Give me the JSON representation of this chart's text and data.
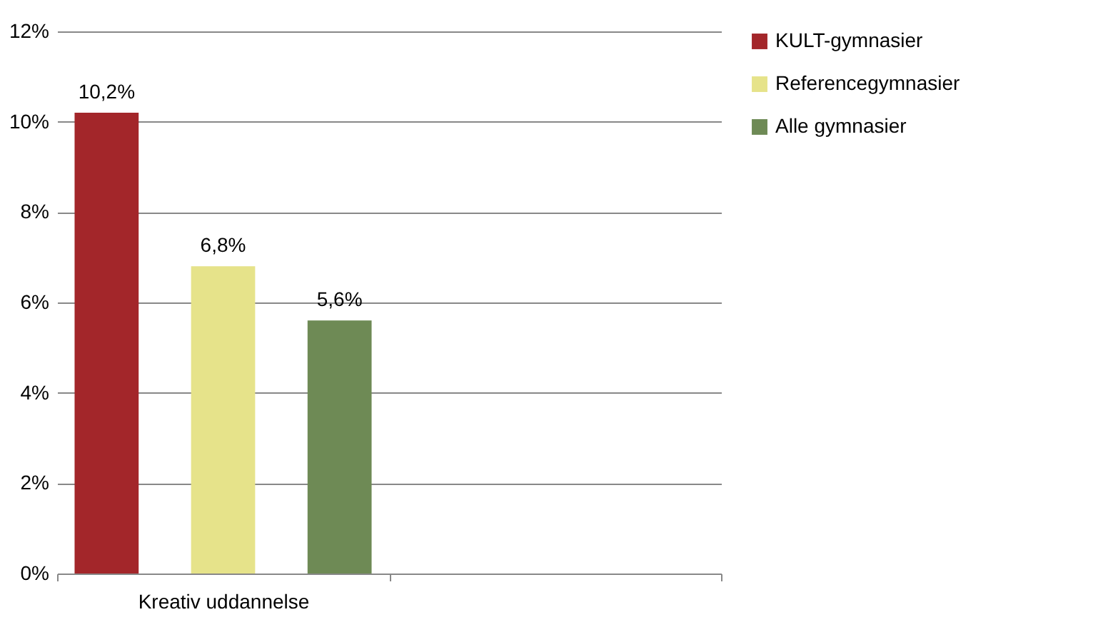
{
  "chart_data": {
    "type": "bar",
    "categories": [
      "Kreativ uddannelse",
      null
    ],
    "series": [
      {
        "name": "KULT-gymnasier",
        "color": "#a3262a",
        "values": [
          10.2,
          null
        ],
        "value_labels": [
          "10,2%",
          null
        ]
      },
      {
        "name": "Referencegymnasier",
        "color": "#e6e38a",
        "values": [
          6.8,
          null
        ],
        "value_labels": [
          "6,8%",
          null
        ]
      },
      {
        "name": "Alle gymnasier",
        "color": "#6e8a55",
        "values": [
          5.6,
          null
        ],
        "value_labels": [
          "5,6%",
          null
        ]
      }
    ],
    "ylim": [
      0,
      12
    ],
    "yticks": [
      {
        "value": 0,
        "label": "0%"
      },
      {
        "value": 2,
        "label": "2%"
      },
      {
        "value": 4,
        "label": "4%"
      },
      {
        "value": 6,
        "label": "6%"
      },
      {
        "value": 8,
        "label": "8%"
      },
      {
        "value": 10,
        "label": "10%"
      },
      {
        "value": 12,
        "label": "12%"
      }
    ],
    "grid": "y",
    "legend": "right"
  }
}
